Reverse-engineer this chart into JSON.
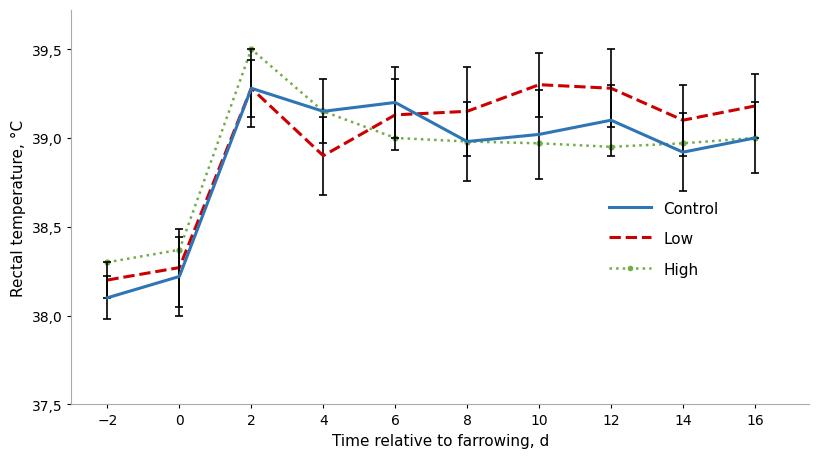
{
  "x": [
    -2,
    0,
    2,
    4,
    6,
    8,
    10,
    12,
    14,
    16
  ],
  "control_y": [
    38.1,
    38.22,
    39.28,
    39.15,
    39.2,
    38.98,
    39.02,
    39.1,
    38.92,
    39.0
  ],
  "control_err": [
    0.12,
    0.22,
    0.16,
    0.18,
    0.2,
    0.22,
    0.25,
    0.2,
    0.22,
    0.2
  ],
  "low_y": [
    38.2,
    38.27,
    39.28,
    38.9,
    39.13,
    39.15,
    39.3,
    39.28,
    39.1,
    39.18
  ],
  "low_err": [
    0.1,
    0.22,
    0.22,
    0.22,
    0.2,
    0.25,
    0.18,
    0.22,
    0.2,
    0.18
  ],
  "high_y": [
    38.3,
    38.37,
    39.5,
    39.15,
    39.0,
    38.98,
    38.97,
    38.95,
    38.97,
    39.0
  ],
  "xlim": [
    -3.0,
    17.5
  ],
  "ylim": [
    37.5,
    39.72
  ],
  "yticks": [
    37.5,
    38.0,
    38.5,
    39.0,
    39.5
  ],
  "xticks": [
    -2,
    0,
    2,
    4,
    6,
    8,
    10,
    12,
    14,
    16
  ],
  "xlabel": "Time relative to farrowing, d",
  "ylabel": "Rectal temperature, °C",
  "control_color": "#2E75B6",
  "low_color": "#CC0000",
  "high_color": "#70AD47",
  "elinewidth": 1.2,
  "capsize": 3,
  "capthick": 1.2,
  "legend_labels": [
    "Control",
    "Low",
    "High"
  ],
  "background_color": "#ffffff"
}
